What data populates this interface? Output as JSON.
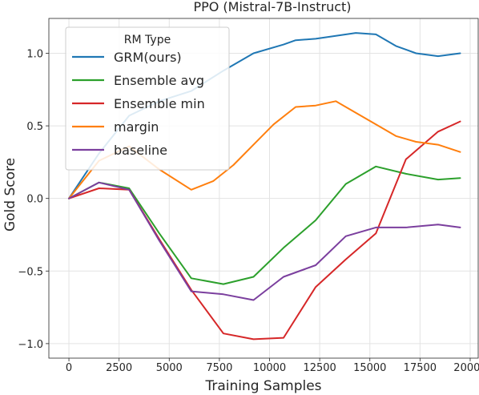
{
  "chart_data": {
    "type": "line",
    "title": "PPO (Mistral-7B-Instruct)",
    "xlabel": "Training Samples",
    "ylabel": "Gold Score",
    "xlim": [
      -1000,
      20400
    ],
    "ylim": [
      -1.1,
      1.24
    ],
    "xticks": [
      0,
      2500,
      5000,
      7500,
      10000,
      12500,
      15000,
      17500,
      20000
    ],
    "yticks": [
      -1.0,
      -0.5,
      0.0,
      0.5,
      1.0
    ],
    "xtick_labels": [
      "0",
      "2500",
      "5000",
      "7500",
      "10000",
      "12500",
      "15000",
      "17500",
      "20000"
    ],
    "ytick_labels": [
      "−1.0",
      "−0.5",
      "0.0",
      "0.5",
      "1.0"
    ],
    "grid": true,
    "legend": {
      "title": "RM Type",
      "position": "top-left"
    },
    "series": [
      {
        "name": "GRM(ours)",
        "color": "#1f77b4",
        "x": [
          0,
          1500,
          3000,
          4500,
          6100,
          7700,
          9200,
          10700,
          11300,
          12300,
          13300,
          14300,
          15300,
          16300,
          17300,
          18400,
          19500
        ],
        "y": [
          0,
          0.31,
          0.57,
          0.67,
          0.74,
          0.88,
          1.0,
          1.06,
          1.09,
          1.1,
          1.12,
          1.14,
          1.13,
          1.05,
          1.0,
          0.98,
          1.0
        ]
      },
      {
        "name": "Ensemble avg",
        "color": "#2ca02c",
        "x": [
          0,
          1500,
          3000,
          4500,
          6100,
          7700,
          9200,
          10700,
          12300,
          13800,
          15300,
          16800,
          18400,
          19500
        ],
        "y": [
          0,
          0.11,
          0.07,
          -0.24,
          -0.55,
          -0.59,
          -0.54,
          -0.34,
          -0.15,
          0.1,
          0.22,
          0.17,
          0.13,
          0.14
        ]
      },
      {
        "name": "Ensemble min",
        "color": "#d62728",
        "x": [
          0,
          1500,
          3000,
          4500,
          6100,
          7700,
          9200,
          10700,
          12300,
          13800,
          15300,
          16800,
          18400,
          19500
        ],
        "y": [
          0,
          0.07,
          0.06,
          -0.28,
          -0.63,
          -0.93,
          -0.97,
          -0.96,
          -0.61,
          -0.42,
          -0.24,
          0.27,
          0.46,
          0.53
        ]
      },
      {
        "name": "margin",
        "color": "#ff7f0e",
        "x": [
          0,
          1500,
          3000,
          4500,
          6100,
          7200,
          8200,
          9200,
          10200,
          11300,
          12300,
          13300,
          14300,
          15300,
          16300,
          17300,
          18400,
          19500
        ],
        "y": [
          0,
          0.26,
          0.36,
          0.2,
          0.06,
          0.12,
          0.23,
          0.37,
          0.51,
          0.63,
          0.64,
          0.67,
          0.59,
          0.51,
          0.43,
          0.39,
          0.37,
          0.32
        ]
      },
      {
        "name": "baseline",
        "color": "#7b3f9e",
        "x": [
          0,
          1500,
          3000,
          4500,
          6100,
          7700,
          9200,
          10700,
          12300,
          13800,
          15300,
          16800,
          18400,
          19500
        ],
        "y": [
          0,
          0.11,
          0.06,
          -0.29,
          -0.64,
          -0.66,
          -0.7,
          -0.54,
          -0.46,
          -0.26,
          -0.2,
          -0.2,
          -0.18,
          -0.2
        ]
      }
    ]
  }
}
